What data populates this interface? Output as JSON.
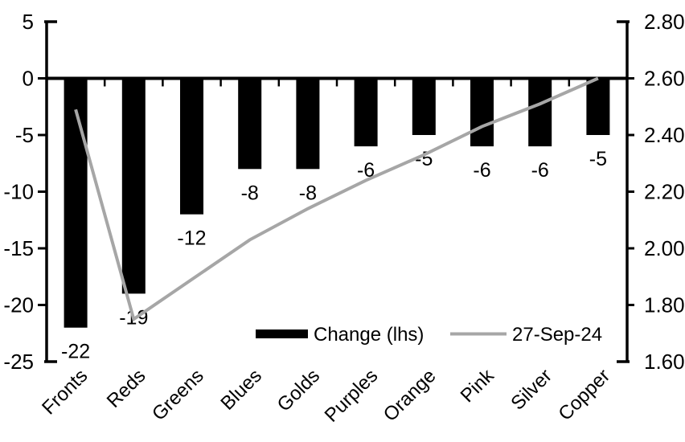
{
  "chart_data": {
    "type": "bar",
    "subtype": "combo-bar-line",
    "title": "",
    "categories": [
      "Fronts",
      "Reds",
      "Greens",
      "Blues",
      "Golds",
      "Purples",
      "Orange",
      "Pink",
      "Silver",
      "Copper"
    ],
    "series": [
      {
        "name": "Change (lhs)",
        "type": "bar",
        "axis": "left",
        "color": "#000000",
        "values": [
          -22,
          -19,
          -12,
          -8,
          -8,
          -6,
          -5,
          -6,
          -6,
          -5
        ],
        "data_labels": [
          "-22",
          "-19",
          "-12",
          "-8",
          "-8",
          "-6",
          "-5",
          "-6",
          "-6",
          "-5"
        ]
      },
      {
        "name": "27-Sep-24",
        "type": "line",
        "axis": "right",
        "color": "#a6a6a6",
        "values": [
          2.49,
          1.75,
          1.89,
          2.03,
          2.14,
          2.24,
          2.33,
          2.43,
          2.51,
          2.6
        ]
      }
    ],
    "left_axis": {
      "min": -25,
      "max": 5,
      "tick_values": [
        5,
        0,
        -5,
        -10,
        -15,
        -20,
        -25
      ],
      "tick_labels": [
        "5",
        "0",
        "-5",
        "-10",
        "-15",
        "-20",
        "-25"
      ]
    },
    "right_axis": {
      "min": 1.6,
      "max": 2.8,
      "tick_values": [
        2.8,
        2.6,
        2.4,
        2.2,
        2.0,
        1.8,
        1.6
      ],
      "tick_labels": [
        "2.80",
        "2.60",
        "2.40",
        "2.20",
        "2.00",
        "1.80",
        "1.60"
      ]
    },
    "legend": {
      "position": "bottom-center",
      "items": [
        {
          "label": "Change (lhs)",
          "swatch": "bar",
          "color": "#000000"
        },
        {
          "label": "27-Sep-24",
          "swatch": "line",
          "color": "#a6a6a6"
        }
      ]
    },
    "grid": false,
    "colors": {
      "bar": "#000000",
      "line": "#a6a6a6",
      "axis": "#000000",
      "text": "#000000",
      "background": "#ffffff"
    }
  }
}
